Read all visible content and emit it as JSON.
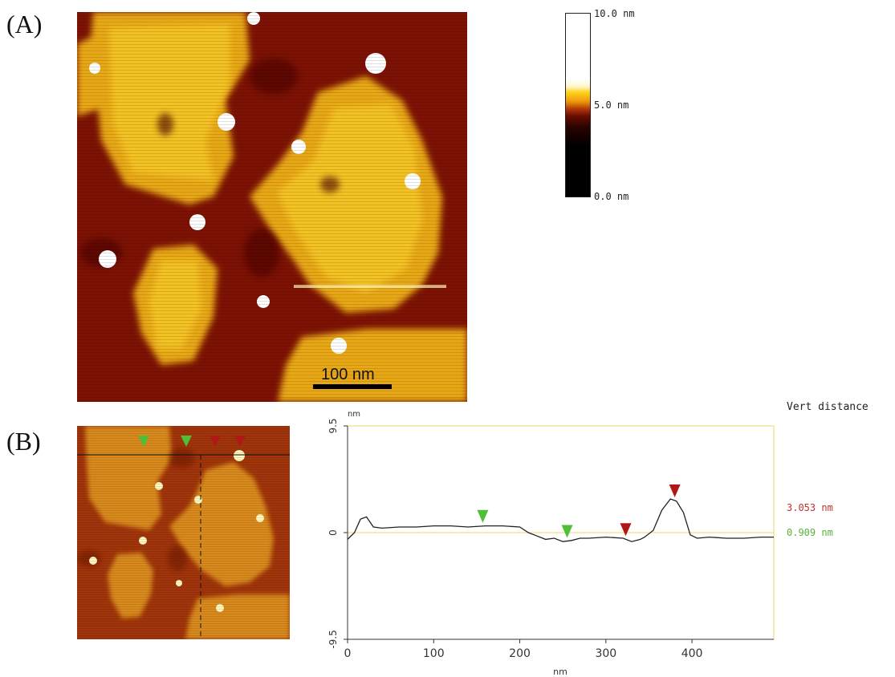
{
  "panels": {
    "a_label": "(A)",
    "b_label": "(B)"
  },
  "colorbar": {
    "top": "10.0 nm",
    "mid": "5.0 nm",
    "bottom": "0.0 nm"
  },
  "scale_bar": {
    "label": "100 nm"
  },
  "measurements": {
    "title": "Vert distance",
    "red": "3.053 nm",
    "green": "0.909 nm"
  },
  "colors": {
    "red_marker": "#b01818",
    "green_marker": "#4fbf3a",
    "profile_line": "#222222",
    "axis_frame": "#e8d86a"
  },
  "chart_data": {
    "type": "line",
    "title": "",
    "xlabel": "nm",
    "ylabel": "nm",
    "xlim": [
      0,
      495
    ],
    "ylim": [
      -9.5,
      9.5
    ],
    "x_ticks": [
      0,
      100,
      200,
      300,
      400
    ],
    "y_ticks": [
      "9.5",
      "0",
      "-9.5"
    ],
    "series": [
      {
        "x": [
          0,
          8,
          15,
          22,
          30,
          40,
          60,
          80,
          100,
          120,
          140,
          160,
          180,
          200,
          210,
          220,
          230,
          240,
          250,
          260,
          270,
          280,
          300,
          320,
          330,
          340,
          345,
          355,
          365,
          375,
          382,
          390,
          398,
          406,
          420,
          440,
          460,
          480,
          495
        ],
        "y": [
          -0.6,
          0.0,
          1.2,
          1.4,
          0.5,
          0.4,
          0.5,
          0.5,
          0.6,
          0.6,
          0.5,
          0.6,
          0.6,
          0.5,
          0.0,
          -0.3,
          -0.6,
          -0.5,
          -0.8,
          -0.7,
          -0.5,
          -0.5,
          -0.4,
          -0.5,
          -0.8,
          -0.6,
          -0.4,
          0.2,
          2.0,
          3.0,
          2.8,
          1.8,
          -0.2,
          -0.5,
          -0.4,
          -0.5,
          -0.5,
          -0.4,
          -0.4
        ]
      }
    ],
    "markers": {
      "green": [
        157,
        255
      ],
      "red": [
        323,
        380
      ]
    }
  }
}
